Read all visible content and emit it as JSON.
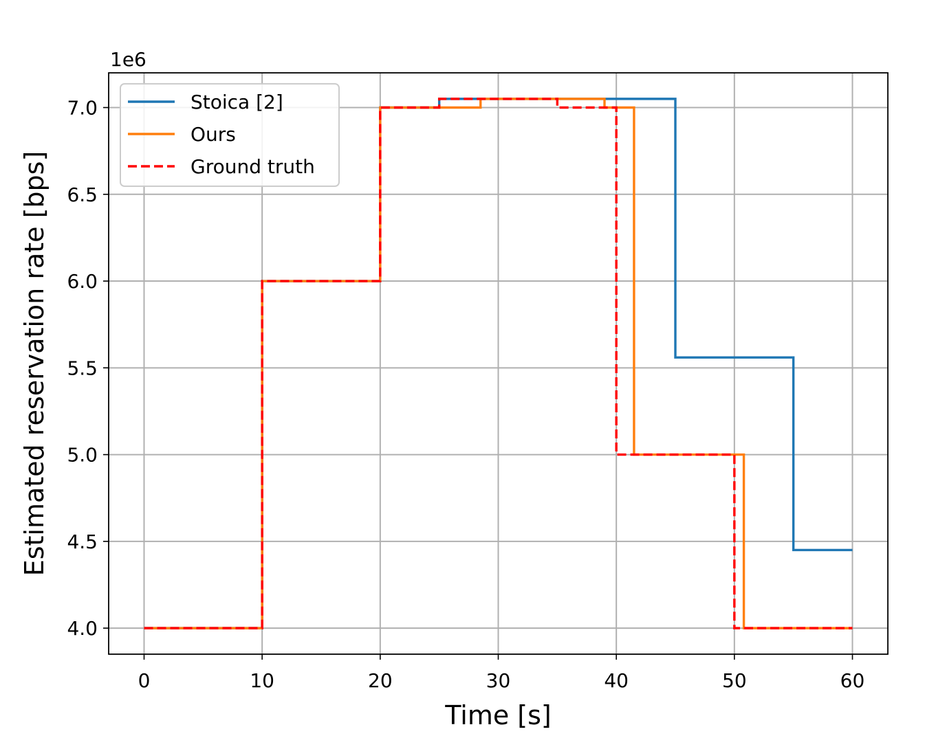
{
  "chart_data": {
    "type": "line",
    "step": true,
    "xlabel": "Time [s]",
    "ylabel": "Estimated reservation rate [bps]",
    "y_offset_label": "1e6",
    "xlim": [
      -3,
      63
    ],
    "ylim": [
      3.85,
      7.2
    ],
    "x_ticks": [
      0,
      10,
      20,
      30,
      40,
      50,
      60
    ],
    "x_tick_labels": [
      "0",
      "10",
      "20",
      "30",
      "40",
      "50",
      "60"
    ],
    "y_ticks": [
      4.0,
      4.5,
      5.0,
      5.5,
      6.0,
      6.5,
      7.0
    ],
    "y_tick_labels": [
      "4.0",
      "4.5",
      "5.0",
      "5.5",
      "6.0",
      "6.5",
      "7.0"
    ],
    "y_unit_scale": 1000000,
    "grid": true,
    "legend_position": "top-left",
    "series": [
      {
        "name": "Stoica [2]",
        "color": "#1f77b4",
        "dashed": false,
        "x": [
          0,
          10,
          20,
          25,
          45,
          55,
          60
        ],
        "y": [
          4.0,
          6.0,
          7.0,
          7.05,
          5.56,
          4.45,
          4.45
        ]
      },
      {
        "name": "Ours",
        "color": "#ff7f0e",
        "dashed": false,
        "x": [
          0,
          10,
          20,
          28.5,
          39,
          41.5,
          50.8,
          60
        ],
        "y": [
          4.0,
          6.0,
          7.0,
          7.05,
          7.0,
          5.0,
          4.0,
          4.0
        ]
      },
      {
        "name": "Ground truth",
        "color": "#ff0000",
        "dashed": true,
        "x": [
          0,
          10,
          20,
          25,
          35,
          40,
          50,
          60
        ],
        "y": [
          4.0,
          6.0,
          7.0,
          7.05,
          7.0,
          5.0,
          4.0,
          4.0
        ]
      }
    ]
  }
}
